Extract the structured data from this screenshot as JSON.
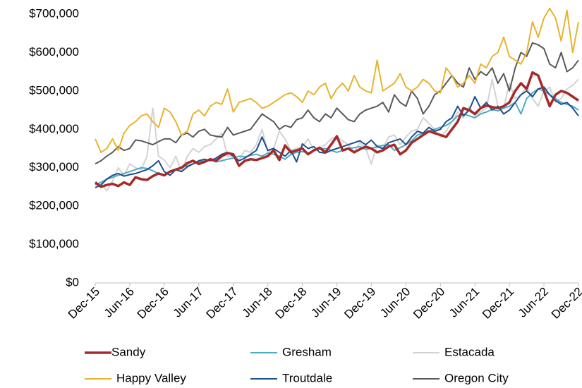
{
  "chart_data": {
    "type": "line",
    "categories": [
      "Dec-15",
      null,
      null,
      null,
      null,
      null,
      "Jun-16",
      null,
      null,
      null,
      null,
      null,
      "Dec-16",
      null,
      null,
      null,
      null,
      null,
      "Jun-17",
      null,
      null,
      null,
      null,
      null,
      "Dec-17",
      null,
      null,
      null,
      null,
      null,
      "Jun-18",
      null,
      null,
      null,
      null,
      null,
      "Dec-18",
      null,
      null,
      null,
      null,
      null,
      "Jun-19",
      null,
      null,
      null,
      null,
      null,
      "Dec-19",
      null,
      null,
      null,
      null,
      null,
      "Jun-20",
      null,
      null,
      null,
      null,
      null,
      "Dec-20",
      null,
      null,
      null,
      null,
      null,
      "Jun-21",
      null,
      null,
      null,
      null,
      null,
      "Dec-21",
      null,
      null,
      null,
      null,
      null,
      "Jun-22",
      null,
      null,
      null,
      null,
      null,
      "Dec-22"
    ],
    "series": [
      {
        "name": "Sandy",
        "color": "#a52a2a",
        "values": [
          262000,
          250000,
          255000,
          258000,
          252000,
          262000,
          255000,
          275000,
          270000,
          268000,
          278000,
          285000,
          280000,
          290000,
          295000,
          300000,
          312000,
          318000,
          310000,
          315000,
          322000,
          318000,
          330000,
          338000,
          335000,
          305000,
          318000,
          322000,
          320000,
          325000,
          330000,
          345000,
          320000,
          358000,
          340000,
          345000,
          350000,
          335000,
          345000,
          352000,
          340000,
          360000,
          382000,
          345000,
          350000,
          340000,
          348000,
          355000,
          350000,
          340000,
          345000,
          355000,
          360000,
          335000,
          345000,
          365000,
          375000,
          385000,
          395000,
          390000,
          385000,
          380000,
          400000,
          420000,
          455000,
          450000,
          440000,
          455000,
          462000,
          458000,
          455000,
          460000,
          470000,
          500000,
          520000,
          505000,
          548000,
          540000,
          500000,
          460000,
          490000,
          500000,
          495000,
          485000,
          475000
        ]
      },
      {
        "name": "Gresham",
        "color": "#4bacc6",
        "values": [
          255000,
          262000,
          270000,
          275000,
          280000,
          285000,
          290000,
          295000,
          300000,
          298000,
          292000,
          285000,
          282000,
          288000,
          295000,
          300000,
          305000,
          310000,
          315000,
          318000,
          320000,
          315000,
          318000,
          322000,
          325000,
          330000,
          328000,
          332000,
          335000,
          330000,
          338000,
          335000,
          330000,
          322000,
          335000,
          340000,
          342000,
          338000,
          345000,
          348000,
          350000,
          345000,
          340000,
          345000,
          350000,
          352000,
          355000,
          348000,
          350000,
          355000,
          358000,
          360000,
          345000,
          352000,
          360000,
          370000,
          385000,
          390000,
          395000,
          400000,
          405000,
          410000,
          420000,
          435000,
          440000,
          435000,
          430000,
          440000,
          445000,
          452000,
          448000,
          455000,
          460000,
          470000,
          440000,
          480000,
          495000,
          505000,
          500000,
          490000,
          480000,
          470000,
          465000,
          460000,
          450000
        ]
      },
      {
        "name": "Estacada",
        "color": "#d3d3d3",
        "values": [
          258000,
          260000,
          240000,
          265000,
          300000,
          280000,
          310000,
          300000,
          295000,
          330000,
          455000,
          330000,
          320000,
          300000,
          330000,
          290000,
          330000,
          350000,
          340000,
          355000,
          360000,
          375000,
          390000,
          330000,
          330000,
          320000,
          345000,
          340000,
          360000,
          400000,
          340000,
          350000,
          395000,
          375000,
          345000,
          350000,
          355000,
          375000,
          345000,
          350000,
          360000,
          375000,
          380000,
          370000,
          360000,
          340000,
          365000,
          350000,
          310000,
          360000,
          350000,
          380000,
          385000,
          360000,
          380000,
          395000,
          400000,
          430000,
          415000,
          400000,
          380000,
          395000,
          420000,
          445000,
          430000,
          460000,
          435000,
          445000,
          455000,
          530000,
          460000,
          455000,
          520000,
          480000,
          490000,
          510000,
          480000,
          460000,
          500000,
          510000,
          470000,
          480000,
          505000,
          515000,
          530000
        ]
      },
      {
        "name": "Happy Valley",
        "color": "#e8b32e",
        "values": [
          375000,
          340000,
          350000,
          375000,
          345000,
          390000,
          410000,
          420000,
          435000,
          440000,
          420000,
          405000,
          455000,
          445000,
          420000,
          385000,
          395000,
          440000,
          450000,
          435000,
          460000,
          470000,
          465000,
          505000,
          445000,
          470000,
          475000,
          480000,
          470000,
          455000,
          460000,
          470000,
          480000,
          490000,
          495000,
          485000,
          470000,
          500000,
          490000,
          510000,
          520000,
          480000,
          505000,
          520000,
          500000,
          540000,
          510000,
          500000,
          495000,
          580000,
          500000,
          510000,
          520000,
          545000,
          510000,
          500000,
          510000,
          530000,
          520000,
          500000,
          495000,
          560000,
          540000,
          510000,
          520000,
          540000,
          520000,
          570000,
          560000,
          590000,
          600000,
          640000,
          590000,
          580000,
          570000,
          600000,
          680000,
          640000,
          690000,
          715000,
          690000,
          630000,
          710000,
          600000,
          680000
        ]
      },
      {
        "name": "Troutdale",
        "color": "#1f4e8c",
        "values": [
          248000,
          255000,
          270000,
          280000,
          285000,
          278000,
          282000,
          285000,
          290000,
          295000,
          305000,
          318000,
          290000,
          280000,
          295000,
          290000,
          302000,
          310000,
          318000,
          322000,
          318000,
          325000,
          335000,
          340000,
          330000,
          318000,
          325000,
          335000,
          345000,
          380000,
          345000,
          350000,
          340000,
          330000,
          345000,
          315000,
          362000,
          350000,
          355000,
          340000,
          338000,
          345000,
          350000,
          355000,
          360000,
          365000,
          370000,
          360000,
          372000,
          355000,
          350000,
          365000,
          370000,
          375000,
          360000,
          380000,
          395000,
          390000,
          405000,
          395000,
          400000,
          420000,
          430000,
          460000,
          435000,
          450000,
          485000,
          455000,
          470000,
          450000,
          460000,
          440000,
          450000,
          470000,
          490000,
          500000,
          485000,
          505000,
          510000,
          490000,
          475000,
          465000,
          470000,
          455000,
          435000
        ]
      },
      {
        "name": "Oregon City",
        "color": "#595959",
        "values": [
          310000,
          318000,
          330000,
          340000,
          355000,
          345000,
          350000,
          372000,
          370000,
          365000,
          360000,
          368000,
          375000,
          375000,
          365000,
          385000,
          390000,
          380000,
          395000,
          400000,
          385000,
          382000,
          380000,
          405000,
          385000,
          390000,
          395000,
          400000,
          420000,
          440000,
          430000,
          420000,
          400000,
          410000,
          405000,
          425000,
          430000,
          450000,
          430000,
          420000,
          440000,
          430000,
          455000,
          440000,
          425000,
          420000,
          440000,
          450000,
          455000,
          460000,
          470000,
          445000,
          490000,
          470000,
          460000,
          500000,
          480000,
          440000,
          460000,
          490000,
          500000,
          520000,
          540000,
          520000,
          510000,
          560000,
          530000,
          550000,
          540000,
          560000,
          520000,
          545000,
          500000,
          560000,
          600000,
          590000,
          625000,
          620000,
          610000,
          570000,
          560000,
          600000,
          550000,
          560000,
          580000
        ]
      }
    ],
    "ylim": [
      0,
      700000
    ],
    "yticks": [
      {
        "value": 0,
        "label": "$0"
      },
      {
        "value": 100000,
        "label": "$100,000"
      },
      {
        "value": 200000,
        "label": "$200,000"
      },
      {
        "value": 300000,
        "label": "$300,000"
      },
      {
        "value": 400000,
        "label": "$400,000"
      },
      {
        "value": 500000,
        "label": "$500,000"
      },
      {
        "value": 600000,
        "label": "$600,000"
      },
      {
        "value": 700000,
        "label": "$700,000"
      }
    ],
    "grid": false
  }
}
